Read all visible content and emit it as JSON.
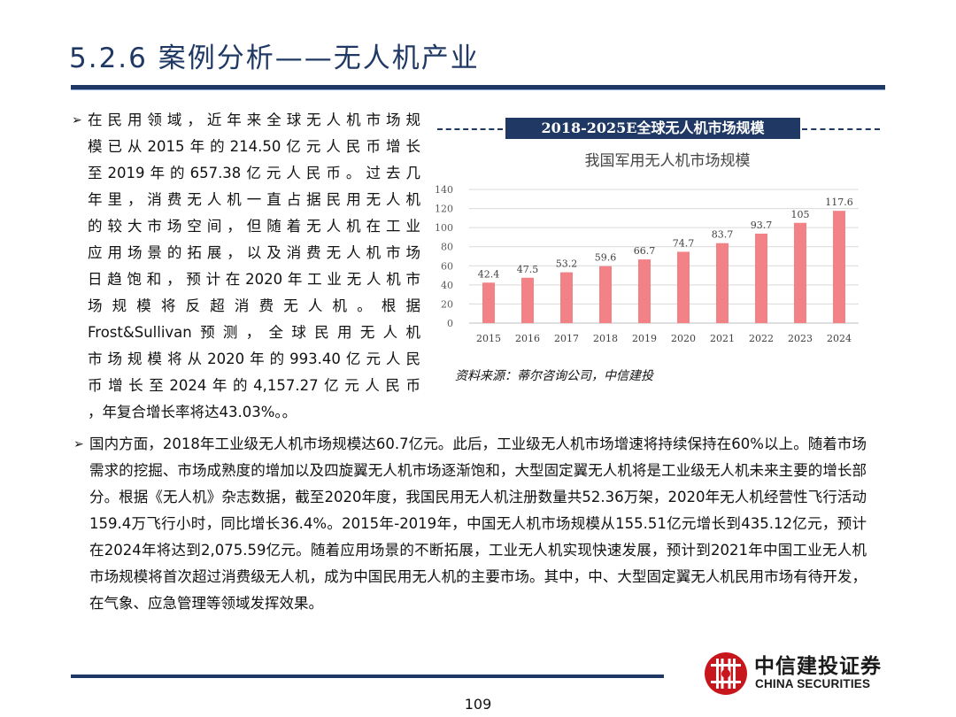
{
  "header": {
    "title": "5.2.6 案例分析——无人机产业"
  },
  "bullets": {
    "first_lines": [
      "在民用领域，近年来全球无人机市场规",
      "模已从2015年的214.50亿元人民币增长",
      "至2019年的657.38亿元人民币。过去几",
      "年里，消费无人机一直占据民用无人机",
      "的较大市场空间，但随着无人机在工业",
      "应用场景的拓展，以及消费无人机市场",
      "日趋饱和，预计在2020年工业无人机市",
      "场规模将反超消费无人机。根据",
      "Frost&Sullivan预测，全球民用无人机",
      "市场规模将从2020年的993.40亿元人民",
      "币增长至2024年的4,157.27亿元人民币",
      "，年复合增长率将达43.03%。。"
    ],
    "second": "国内方面，2018年工业级无人机市场规模达60.7亿元。此后，工业级无人机市场增速将持续保持在60%以上。随着市场需求的挖掘、市场成熟度的增加以及四旋翼无人机市场逐渐饱和，大型固定翼无人机将是工业级无人机未来主要的增长部分。根据《无人机》杂志数据，截至2020年度，我国民用无人机注册数量共52.36万架，2020年无人机经营性飞行活动159.4万飞行小时，同比增长36.4%。2015年-2019年，中国无人机市场规模从155.51亿元增长到435.12亿元，预计在2024年将达到2,075.59亿元。随着应用场景的不断拓展，工业无人机实现快速发展，预计到2021年中国工业无人机市场规模将首次超过消费级无人机，成为中国民用无人机的主要市场。其中，中、大型固定翼无人机民用市场有待开发，在气象、应急管理等领域发挥效果。"
  },
  "chart_banner": "2018-2025E全球无人机市场规模",
  "chart_data": {
    "type": "bar",
    "title": "我国军用无人机市场规模",
    "categories": [
      "2015",
      "2016",
      "2017",
      "2018",
      "2019",
      "2020",
      "2021",
      "2022",
      "2023",
      "2024"
    ],
    "values": [
      42.4,
      47.5,
      53.2,
      59.6,
      66.7,
      74.7,
      83.7,
      93.7,
      105,
      117.6
    ],
    "value_labels": [
      "42.4",
      "47.5",
      "53.2",
      "59.6",
      "66.7",
      "74.7",
      "83.7",
      "93.7",
      "105",
      "117.6"
    ],
    "y_ticks": [
      "0",
      "20",
      "40",
      "60",
      "80",
      "100",
      "120",
      "140"
    ],
    "ylim": [
      0,
      140
    ],
    "grid": true,
    "bar_color": "#f28286",
    "xlabel": "",
    "ylabel": ""
  },
  "source": "资料来源：蒂尔咨询公司，中信建投",
  "footer": {
    "page_number": "109",
    "logo_cn": "中信建投证券",
    "logo_en": "CHINA SECURITIES"
  },
  "colors": {
    "navy": "#1f3864",
    "bar": "#f28286"
  }
}
